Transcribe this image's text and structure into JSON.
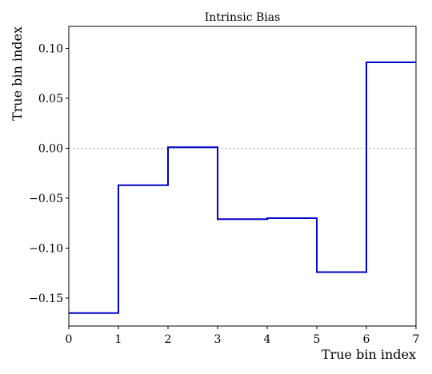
{
  "chart_data": {
    "type": "line",
    "step": "post",
    "title": "Intrinsic Bias",
    "xlabel": "True bin index",
    "ylabel": "True bin index",
    "xlim": [
      0,
      7
    ],
    "ylim": [
      -0.178,
      0.122
    ],
    "xticks": [
      0,
      1,
      2,
      3,
      4,
      5,
      6,
      7
    ],
    "yticks": [
      0.1,
      0.05,
      0.0,
      -0.05,
      -0.1,
      -0.15
    ],
    "ytick_labels": [
      "0.10",
      "0.05",
      "0.00",
      "−0.05",
      "−0.10",
      "−0.15"
    ],
    "reference_line": {
      "y": 0.0,
      "style": "dashed",
      "color": "#bbbbbb"
    },
    "series": [
      {
        "color": "#0000cc",
        "bin_edges": [
          0,
          1,
          2,
          3,
          4,
          5,
          6,
          7
        ],
        "values": [
          -0.165,
          -0.037,
          0.001,
          -0.071,
          -0.07,
          -0.124,
          0.086
        ]
      }
    ]
  }
}
